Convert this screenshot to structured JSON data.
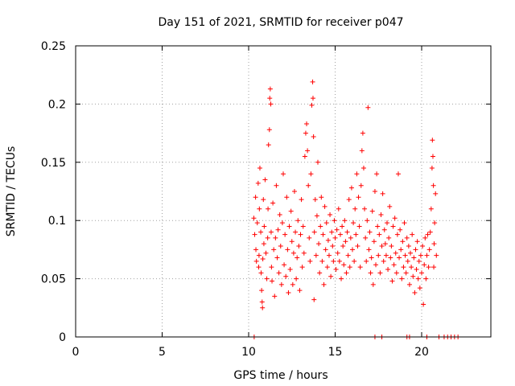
{
  "chart_data": {
    "type": "scatter",
    "title": "Day 151 of 2021, SRMTID for receiver p047",
    "xlabel": "GPS time / hours",
    "ylabel": "SRMTID / TECUs",
    "xlim": [
      0,
      24
    ],
    "ylim": [
      0,
      0.25
    ],
    "xticks": [
      0,
      5,
      10,
      15,
      20
    ],
    "xtick_labels": [
      "0",
      "5",
      "10",
      "15",
      "20"
    ],
    "yticks": [
      0,
      0.05,
      0.1,
      0.15,
      0.2,
      0.25
    ],
    "ytick_labels": [
      "0",
      "0.05",
      "0.1",
      "0.15",
      "0.2",
      "0.25"
    ],
    "grid": true,
    "marker": "+",
    "color": "#ff0000",
    "series": [
      {
        "name": "SRMTID",
        "points": [
          [
            10.3,
            0.102
          ],
          [
            10.35,
            0.088
          ],
          [
            10.4,
            0.12
          ],
          [
            10.42,
            0.075
          ],
          [
            10.45,
            0.065
          ],
          [
            10.5,
            0.098
          ],
          [
            10.55,
            0.132
          ],
          [
            10.58,
            0.06
          ],
          [
            10.6,
            0.07
          ],
          [
            10.62,
            0.11
          ],
          [
            10.65,
            0.145
          ],
          [
            10.7,
            0.09
          ],
          [
            10.72,
            0.055
          ],
          [
            10.75,
            0.04
          ],
          [
            10.78,
            0.03
          ],
          [
            10.8,
            0.025
          ],
          [
            10.82,
            0.067
          ],
          [
            10.85,
            0.118
          ],
          [
            10.88,
            0.08
          ],
          [
            10.9,
            0.095
          ],
          [
            10.95,
            0.135
          ],
          [
            11.0,
            0.072
          ],
          [
            11.05,
            0.05
          ],
          [
            11.1,
            0.085
          ],
          [
            11.12,
            0.11
          ],
          [
            11.15,
            0.165
          ],
          [
            11.2,
            0.178
          ],
          [
            11.22,
            0.205
          ],
          [
            11.25,
            0.213
          ],
          [
            11.28,
            0.2
          ],
          [
            11.3,
            0.09
          ],
          [
            11.32,
            0.06
          ],
          [
            11.35,
            0.048
          ],
          [
            11.4,
            0.115
          ],
          [
            11.45,
            0.075
          ],
          [
            11.5,
            0.035
          ],
          [
            11.55,
            0.085
          ],
          [
            11.6,
            0.13
          ],
          [
            11.65,
            0.068
          ],
          [
            11.7,
            0.092
          ],
          [
            11.75,
            0.055
          ],
          [
            11.8,
            0.105
          ],
          [
            11.85,
            0.078
          ],
          [
            11.9,
            0.045
          ],
          [
            11.95,
            0.098
          ],
          [
            12.0,
            0.14
          ],
          [
            12.05,
            0.062
          ],
          [
            12.1,
            0.088
          ],
          [
            12.15,
            0.052
          ],
          [
            12.2,
            0.12
          ],
          [
            12.25,
            0.075
          ],
          [
            12.3,
            0.038
          ],
          [
            12.35,
            0.095
          ],
          [
            12.4,
            0.058
          ],
          [
            12.45,
            0.108
          ],
          [
            12.5,
            0.082
          ],
          [
            12.55,
            0.045
          ],
          [
            12.6,
            0.072
          ],
          [
            12.65,
            0.125
          ],
          [
            12.7,
            0.09
          ],
          [
            12.75,
            0.05
          ],
          [
            12.8,
            0.068
          ],
          [
            12.85,
            0.1
          ],
          [
            12.9,
            0.078
          ],
          [
            12.95,
            0.04
          ],
          [
            13.0,
            0.088
          ],
          [
            13.05,
            0.118
          ],
          [
            13.1,
            0.06
          ],
          [
            13.15,
            0.095
          ],
          [
            13.2,
            0.072
          ],
          [
            13.25,
            0.155
          ],
          [
            13.3,
            0.175
          ],
          [
            13.35,
            0.183
          ],
          [
            13.4,
            0.16
          ],
          [
            13.45,
            0.13
          ],
          [
            13.5,
            0.085
          ],
          [
            13.55,
            0.065
          ],
          [
            13.6,
            0.14
          ],
          [
            13.65,
            0.199
          ],
          [
            13.7,
            0.219
          ],
          [
            13.72,
            0.205
          ],
          [
            13.75,
            0.172
          ],
          [
            13.78,
            0.032
          ],
          [
            13.8,
            0.09
          ],
          [
            13.85,
            0.118
          ],
          [
            13.9,
            0.07
          ],
          [
            13.95,
            0.104
          ],
          [
            14.0,
            0.15
          ],
          [
            14.05,
            0.08
          ],
          [
            14.1,
            0.055
          ],
          [
            14.15,
            0.095
          ],
          [
            14.2,
            0.12
          ],
          [
            14.25,
            0.065
          ],
          [
            14.3,
            0.088
          ],
          [
            14.35,
            0.045
          ],
          [
            14.4,
            0.112
          ],
          [
            14.45,
            0.075
          ],
          [
            14.5,
            0.098
          ],
          [
            14.55,
            0.06
          ],
          [
            14.6,
            0.083
          ],
          [
            14.65,
            0.07
          ],
          [
            14.7,
            0.105
          ],
          [
            14.75,
            0.052
          ],
          [
            14.8,
            0.09
          ],
          [
            14.85,
            0.078
          ],
          [
            14.9,
            0.065
          ],
          [
            14.95,
            0.1
          ],
          [
            15.0,
            0.085
          ],
          [
            15.05,
            0.058
          ],
          [
            15.1,
            0.092
          ],
          [
            15.15,
            0.072
          ],
          [
            15.2,
            0.11
          ],
          [
            15.25,
            0.065
          ],
          [
            15.3,
            0.088
          ],
          [
            15.35,
            0.05
          ],
          [
            15.4,
            0.095
          ],
          [
            15.45,
            0.078
          ],
          [
            15.5,
            0.062
          ],
          [
            15.55,
            0.1
          ],
          [
            15.6,
            0.082
          ],
          [
            15.65,
            0.055
          ],
          [
            15.7,
            0.09
          ],
          [
            15.75,
            0.07
          ],
          [
            15.8,
            0.118
          ],
          [
            15.85,
            0.06
          ],
          [
            15.9,
            0.085
          ],
          [
            15.95,
            0.128
          ],
          [
            16.0,
            0.075
          ],
          [
            16.05,
            0.098
          ],
          [
            16.1,
            0.065
          ],
          [
            16.15,
            0.11
          ],
          [
            16.2,
            0.088
          ],
          [
            16.25,
            0.14
          ],
          [
            16.3,
            0.078
          ],
          [
            16.35,
            0.12
          ],
          [
            16.4,
            0.095
          ],
          [
            16.45,
            0.06
          ],
          [
            16.5,
            0.13
          ],
          [
            16.55,
            0.16
          ],
          [
            16.6,
            0.175
          ],
          [
            16.65,
            0.145
          ],
          [
            16.7,
            0.11
          ],
          [
            16.75,
            0.085
          ],
          [
            16.8,
            0.065
          ],
          [
            16.85,
            0.1
          ],
          [
            16.9,
            0.197
          ],
          [
            16.95,
            0.075
          ],
          [
            17.0,
            0.09
          ],
          [
            17.05,
            0.055
          ],
          [
            17.1,
            0.068
          ],
          [
            17.15,
            0.108
          ],
          [
            17.2,
            0.045
          ],
          [
            17.25,
            0.082
          ],
          [
            17.3,
            0.125
          ],
          [
            17.35,
            0.062
          ],
          [
            17.4,
            0.14
          ],
          [
            17.45,
            0.095
          ],
          [
            17.5,
            0.07
          ],
          [
            17.55,
            0.088
          ],
          [
            17.6,
            0.055
          ],
          [
            17.65,
            0.105
          ],
          [
            17.7,
            0.078
          ],
          [
            17.75,
            0.123
          ],
          [
            17.8,
            0.065
          ],
          [
            17.85,
            0.092
          ],
          [
            17.9,
            0.08
          ],
          [
            17.95,
            0.07
          ],
          [
            18.0,
            0.098
          ],
          [
            18.05,
            0.058
          ],
          [
            18.1,
            0.085
          ],
          [
            18.15,
            0.112
          ],
          [
            18.2,
            0.068
          ],
          [
            18.25,
            0.078
          ],
          [
            18.3,
            0.048
          ],
          [
            18.35,
            0.095
          ],
          [
            18.4,
            0.062
          ],
          [
            18.45,
            0.102
          ],
          [
            18.5,
            0.072
          ],
          [
            18.55,
            0.055
          ],
          [
            18.6,
            0.088
          ],
          [
            18.65,
            0.14
          ],
          [
            18.7,
            0.068
          ],
          [
            18.75,
            0.092
          ],
          [
            18.8,
            0.075
          ],
          [
            18.85,
            0.05
          ],
          [
            18.9,
            0.082
          ],
          [
            18.95,
            0.06
          ],
          [
            19.0,
            0.098
          ],
          [
            19.05,
            0.07
          ],
          [
            19.1,
            0.055
          ],
          [
            19.15,
            0.085
          ],
          [
            19.2,
            0.065
          ],
          [
            19.25,
            0.078
          ],
          [
            19.3,
            0.045
          ],
          [
            19.35,
            0.072
          ],
          [
            19.4,
            0.06
          ],
          [
            19.45,
            0.088
          ],
          [
            19.5,
            0.052
          ],
          [
            19.55,
            0.068
          ],
          [
            19.6,
            0.038
          ],
          [
            19.65,
            0.075
          ],
          [
            19.7,
            0.058
          ],
          [
            19.75,
            0.082
          ],
          [
            19.8,
            0.05
          ],
          [
            19.85,
            0.065
          ],
          [
            19.9,
            0.042
          ],
          [
            19.95,
            0.07
          ],
          [
            20.0,
            0.055
          ],
          [
            20.05,
            0.078
          ],
          [
            20.1,
            0.028
          ],
          [
            20.15,
            0.062
          ],
          [
            20.2,
            0.085
          ],
          [
            20.25,
            0.05
          ],
          [
            20.3,
            0.07
          ],
          [
            20.35,
            0.088
          ],
          [
            20.4,
            0.06
          ],
          [
            20.45,
            0.075
          ],
          [
            20.5,
            0.09
          ],
          [
            20.55,
            0.11
          ],
          [
            20.6,
            0.145
          ],
          [
            20.62,
            0.169
          ],
          [
            20.65,
            0.155
          ],
          [
            20.68,
            0.13
          ],
          [
            20.7,
            0.06
          ],
          [
            20.72,
            0.08
          ],
          [
            20.75,
            0.098
          ],
          [
            20.8,
            0.123
          ],
          [
            20.85,
            0.07
          ],
          [
            10.32,
            0.0
          ],
          [
            17.3,
            0.0
          ],
          [
            17.7,
            0.0
          ],
          [
            19.15,
            0.0
          ],
          [
            19.3,
            0.0
          ],
          [
            20.3,
            0.0
          ],
          [
            21.0,
            0.0
          ],
          [
            21.3,
            0.0
          ],
          [
            21.5,
            0.0
          ],
          [
            21.7,
            0.0
          ],
          [
            21.9,
            0.0
          ],
          [
            22.1,
            0.0
          ]
        ]
      }
    ]
  }
}
